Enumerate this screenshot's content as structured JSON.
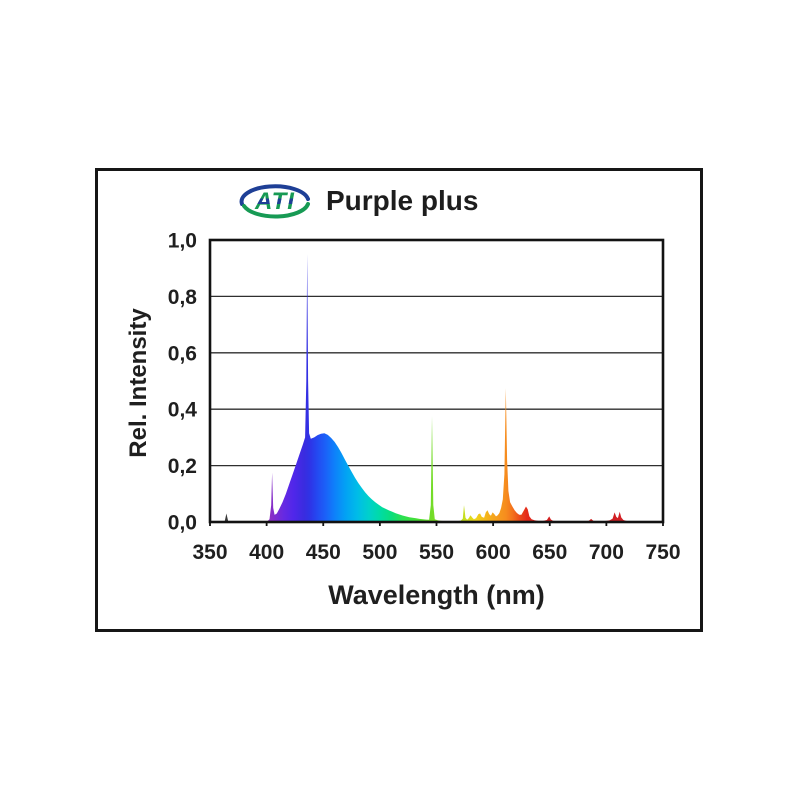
{
  "window": {
    "background": "#ffffff",
    "panel_border": "#161616"
  },
  "header": {
    "logo_text": "ATI",
    "title": "Purple plus",
    "logo_green": "#179a54",
    "logo_blue": "#1e3f96",
    "title_color": "#1d1d1d"
  },
  "chart_data": {
    "type": "area",
    "subtype": "emission-spectrum",
    "title": "Purple plus",
    "xlabel": "Wavelength (nm)",
    "ylabel": "Rel. Intensity",
    "xlim": [
      350,
      750
    ],
    "ylim": [
      0,
      1
    ],
    "grid": true,
    "gridlines": [
      0.2,
      0.4,
      0.6,
      0.8
    ],
    "grid_color": "#2f2f2f",
    "frame_color": "#121212",
    "label_color": "#1f1f1f",
    "legend": "none",
    "xticks": [
      {
        "v": 350,
        "label": "350"
      },
      {
        "v": 400,
        "label": "400"
      },
      {
        "v": 450,
        "label": "450"
      },
      {
        "v": 500,
        "label": "500"
      },
      {
        "v": 550,
        "label": "550"
      },
      {
        "v": 600,
        "label": "600"
      },
      {
        "v": 650,
        "label": "650"
      },
      {
        "v": 700,
        "label": "700"
      },
      {
        "v": 750,
        "label": "750"
      }
    ],
    "yticks": [
      {
        "v": 1.0,
        "label": "1,0"
      },
      {
        "v": 0.8,
        "label": "0,8"
      },
      {
        "v": 0.6,
        "label": "0,6"
      },
      {
        "v": 0.4,
        "label": "0,4"
      },
      {
        "v": 0.2,
        "label": "0,2"
      },
      {
        "v": 0.0,
        "label": "0,0"
      }
    ],
    "peaks": [
      {
        "nm": 365,
        "intensity": 0.03
      },
      {
        "nm": 405,
        "intensity": 0.17
      },
      {
        "nm": 436,
        "intensity": 0.95
      },
      {
        "nm": 450,
        "intensity": 0.31
      },
      {
        "nm": 546,
        "intensity": 0.37
      },
      {
        "nm": 574,
        "intensity": 0.06
      },
      {
        "nm": 611,
        "intensity": 0.47
      },
      {
        "nm": 630,
        "intensity": 0.05
      },
      {
        "nm": 650,
        "intensity": 0.02
      },
      {
        "nm": 687,
        "intensity": 0.01
      },
      {
        "nm": 708,
        "intensity": 0.034
      },
      {
        "nm": 712,
        "intensity": 0.036
      }
    ],
    "profile": [
      [
        350,
        0
      ],
      [
        361.5,
        0
      ],
      [
        363,
        0.003
      ],
      [
        364.5,
        0.03
      ],
      [
        366,
        0.004
      ],
      [
        368,
        0.001
      ],
      [
        372,
        0
      ],
      [
        400,
        0
      ],
      [
        402.5,
        0.01
      ],
      [
        404,
        0.06
      ],
      [
        404.8,
        0.175
      ],
      [
        405.8,
        0.05
      ],
      [
        407,
        0.025
      ],
      [
        409,
        0.03
      ],
      [
        411,
        0.045
      ],
      [
        414,
        0.07
      ],
      [
        417,
        0.1
      ],
      [
        420,
        0.135
      ],
      [
        423,
        0.17
      ],
      [
        426,
        0.205
      ],
      [
        429,
        0.24
      ],
      [
        432,
        0.275
      ],
      [
        434,
        0.3
      ],
      [
        435,
        0.5
      ],
      [
        435.8,
        0.95
      ],
      [
        436.6,
        0.5
      ],
      [
        437.5,
        0.315
      ],
      [
        439,
        0.295
      ],
      [
        442,
        0.3
      ],
      [
        445,
        0.308
      ],
      [
        448,
        0.313
      ],
      [
        451,
        0.315
      ],
      [
        454,
        0.309
      ],
      [
        457,
        0.298
      ],
      [
        460,
        0.284
      ],
      [
        463,
        0.266
      ],
      [
        466,
        0.245
      ],
      [
        469,
        0.222
      ],
      [
        472,
        0.2
      ],
      [
        475,
        0.178
      ],
      [
        478,
        0.157
      ],
      [
        481,
        0.138
      ],
      [
        484,
        0.121
      ],
      [
        487,
        0.105
      ],
      [
        490,
        0.092
      ],
      [
        493,
        0.08
      ],
      [
        496,
        0.07
      ],
      [
        499,
        0.061
      ],
      [
        502,
        0.053
      ],
      [
        505,
        0.047
      ],
      [
        508,
        0.041
      ],
      [
        511,
        0.036
      ],
      [
        514,
        0.031
      ],
      [
        517,
        0.027
      ],
      [
        520,
        0.023
      ],
      [
        523,
        0.02
      ],
      [
        526,
        0.017
      ],
      [
        529,
        0.015
      ],
      [
        532,
        0.013
      ],
      [
        535,
        0.011
      ],
      [
        538,
        0.0095
      ],
      [
        541,
        0.0085
      ],
      [
        543.5,
        0.008
      ],
      [
        545,
        0.06
      ],
      [
        546,
        0.375
      ],
      [
        547.2,
        0.06
      ],
      [
        548.5,
        0.01
      ],
      [
        551,
        0.006
      ],
      [
        554,
        0.004
      ],
      [
        558,
        0.003
      ],
      [
        563,
        0.003
      ],
      [
        568,
        0.003
      ],
      [
        571.5,
        0.005
      ],
      [
        573.2,
        0.012
      ],
      [
        574.3,
        0.06
      ],
      [
        575.6,
        0.015
      ],
      [
        577,
        0.008
      ],
      [
        578.5,
        0.014
      ],
      [
        580,
        0.024
      ],
      [
        581.5,
        0.016
      ],
      [
        583,
        0.01
      ],
      [
        585,
        0.014
      ],
      [
        587,
        0.028
      ],
      [
        588.5,
        0.03
      ],
      [
        590,
        0.018
      ],
      [
        592,
        0.015
      ],
      [
        593.5,
        0.034
      ],
      [
        595,
        0.042
      ],
      [
        596.5,
        0.028
      ],
      [
        598,
        0.022
      ],
      [
        599.5,
        0.034
      ],
      [
        601,
        0.028
      ],
      [
        602.5,
        0.02
      ],
      [
        604,
        0.024
      ],
      [
        605.5,
        0.032
      ],
      [
        607,
        0.05
      ],
      [
        608.5,
        0.08
      ],
      [
        610,
        0.17
      ],
      [
        611.2,
        0.475
      ],
      [
        612.3,
        0.22
      ],
      [
        613.5,
        0.11
      ],
      [
        615,
        0.07
      ],
      [
        617,
        0.055
      ],
      [
        619,
        0.042
      ],
      [
        621,
        0.032
      ],
      [
        623,
        0.026
      ],
      [
        625,
        0.026
      ],
      [
        627,
        0.04
      ],
      [
        629,
        0.055
      ],
      [
        630.5,
        0.045
      ],
      [
        632,
        0.02
      ],
      [
        634,
        0.01
      ],
      [
        636.5,
        0.006
      ],
      [
        640,
        0.004
      ],
      [
        644,
        0.004
      ],
      [
        647.5,
        0.007
      ],
      [
        649.5,
        0.02
      ],
      [
        651,
        0.009
      ],
      [
        653,
        0.004
      ],
      [
        657,
        0.003
      ],
      [
        662,
        0.003
      ],
      [
        668,
        0.002
      ],
      [
        674,
        0.002
      ],
      [
        680,
        0.003
      ],
      [
        684.5,
        0.004
      ],
      [
        686.5,
        0.011
      ],
      [
        688.5,
        0.004
      ],
      [
        692,
        0.002
      ],
      [
        696,
        0.003
      ],
      [
        700,
        0.004
      ],
      [
        703,
        0.006
      ],
      [
        705.5,
        0.012
      ],
      [
        707.3,
        0.034
      ],
      [
        708.8,
        0.018
      ],
      [
        710.2,
        0.014
      ],
      [
        711.8,
        0.036
      ],
      [
        713.2,
        0.016
      ],
      [
        715,
        0.007
      ],
      [
        717.5,
        0.004
      ],
      [
        721,
        0.002
      ],
      [
        727,
        0.001
      ],
      [
        735,
        0.001
      ],
      [
        745,
        0
      ],
      [
        750,
        0
      ]
    ],
    "color_scale": [
      {
        "nm": 350,
        "color": "#3a3a3a"
      },
      {
        "nm": 366,
        "color": "#3a3a3a"
      },
      {
        "nm": 380,
        "color": "#6a28a8"
      },
      {
        "nm": 403,
        "color": "#8c2fc4"
      },
      {
        "nm": 408,
        "color": "#7c2cd0"
      },
      {
        "nm": 415,
        "color": "#6629e2"
      },
      {
        "nm": 424,
        "color": "#4f27ea"
      },
      {
        "nm": 433,
        "color": "#3a2cdf"
      },
      {
        "nm": 438,
        "color": "#2f33e6"
      },
      {
        "nm": 444,
        "color": "#2547f0"
      },
      {
        "nm": 452,
        "color": "#1b61f8"
      },
      {
        "nm": 460,
        "color": "#0e80fa"
      },
      {
        "nm": 470,
        "color": "#02a2f4"
      },
      {
        "nm": 480,
        "color": "#00bce8"
      },
      {
        "nm": 490,
        "color": "#00d0cc"
      },
      {
        "nm": 500,
        "color": "#00dba6"
      },
      {
        "nm": 510,
        "color": "#0ade7c"
      },
      {
        "nm": 520,
        "color": "#2ce052"
      },
      {
        "nm": 532,
        "color": "#45df36"
      },
      {
        "nm": 546,
        "color": "#74dc28"
      },
      {
        "nm": 560,
        "color": "#95dc24"
      },
      {
        "nm": 574,
        "color": "#c4de1e"
      },
      {
        "nm": 584,
        "color": "#eed71b"
      },
      {
        "nm": 592,
        "color": "#f4bb1a"
      },
      {
        "nm": 602,
        "color": "#f5a01d"
      },
      {
        "nm": 611,
        "color": "#f68d1e"
      },
      {
        "nm": 617,
        "color": "#f3731d"
      },
      {
        "nm": 624,
        "color": "#ea481c"
      },
      {
        "nm": 630,
        "color": "#e42a1b"
      },
      {
        "nm": 642,
        "color": "#d62020"
      },
      {
        "nm": 665,
        "color": "#cb1d1d"
      },
      {
        "nm": 695,
        "color": "#cf1e1e"
      },
      {
        "nm": 715,
        "color": "#d22127"
      },
      {
        "nm": 750,
        "color": "#bf1c1c"
      }
    ]
  }
}
